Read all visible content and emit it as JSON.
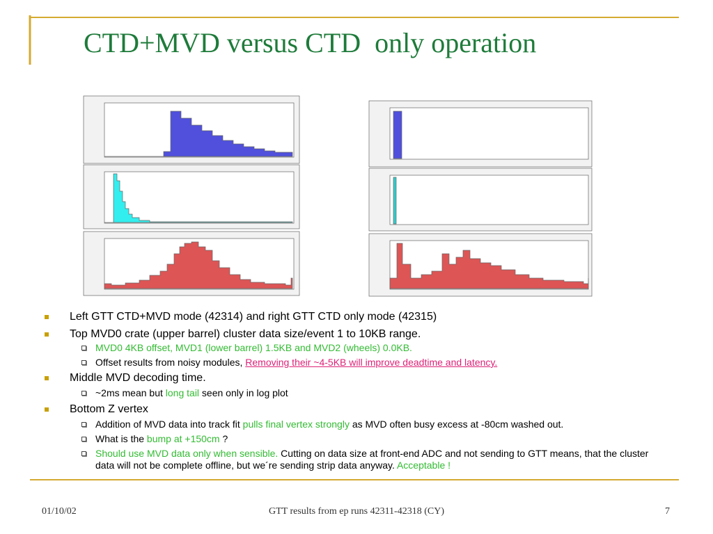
{
  "title": "CTD+MVD versus CTD  only operation",
  "items": [
    {
      "level": 1,
      "parts": [
        {
          "text": "Left GTT CTD+MVD mode (42314) and right GTT CTD only mode (42315)"
        }
      ]
    },
    {
      "level": 1,
      "parts": [
        {
          "text": "Top MVD0 crate (upper barrel) cluster data size/event 1 to 10KB range."
        }
      ]
    },
    {
      "level": 2,
      "parts": [
        {
          "text": "MVD0 4KB offset, MVD1 (lower barrel) 1.5KB and MVD2 (wheels) 0.0KB.",
          "color": "green"
        }
      ]
    },
    {
      "level": 2,
      "parts": [
        {
          "text": "Offset results from noisy modules, "
        },
        {
          "text": "Removing their ~4-5KB will improve deadtime and latency.",
          "color": "pink"
        }
      ]
    },
    {
      "level": 1,
      "parts": [
        {
          "text": "Middle MVD decoding time."
        }
      ]
    },
    {
      "level": 2,
      "parts": [
        {
          "text": "~2ms mean but "
        },
        {
          "text": "long tail",
          "color": "green"
        },
        {
          "text": " seen only in log plot"
        }
      ]
    },
    {
      "level": 1,
      "parts": [
        {
          "text": "Bottom Z vertex"
        }
      ]
    },
    {
      "level": 2,
      "parts": [
        {
          "text": "Addition of MVD data into track fit "
        },
        {
          "text": "pulls final vertex strongly",
          "color": "green"
        },
        {
          "text": " as MVD often busy excess at -80cm washed out."
        }
      ]
    },
    {
      "level": 2,
      "parts": [
        {
          "text": "What is the "
        },
        {
          "text": "bump at +150cm",
          "color": "green"
        },
        {
          "text": " ?"
        }
      ]
    },
    {
      "level": 2,
      "parts": [
        {
          "text": "Should use MVD data only when sensible.",
          "color": "green"
        },
        {
          "text": " Cutting on data size at front-end ADC and not sending to GTT means, that the cluster data will not be complete offline, but we´re sending strip data anyway. "
        },
        {
          "text": "Acceptable !",
          "color": "green"
        }
      ]
    }
  ],
  "footer": {
    "date": "01/10/02",
    "center": "GTT results from ep runs 42311-42318 (CY)",
    "page": 7
  }
}
